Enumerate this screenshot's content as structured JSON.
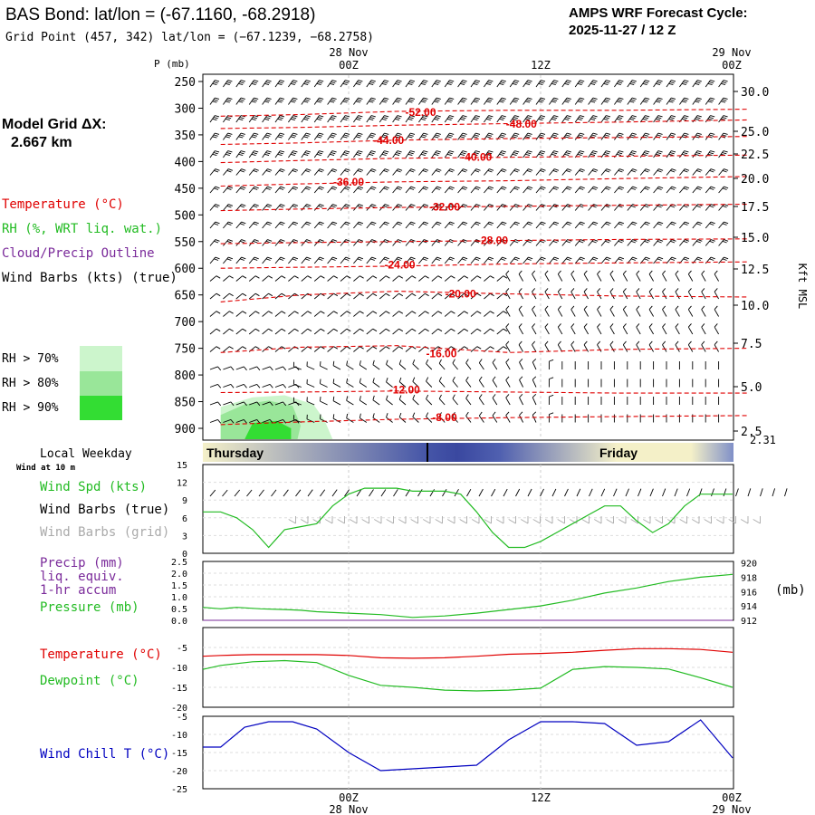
{
  "header": {
    "title": "BAS Bond:  lat/lon = (-67.1160, -68.2918)",
    "grid_point": "Grid Point (457, 342) lat/lon = (−67.1239, −68.2758)",
    "forecast_label": "AMPS WRF Forecast Cycle:",
    "forecast_cycle": "2025-11-27 / 12  Z"
  },
  "time_axis": {
    "top_date_left": "28 Nov",
    "top_date_right": "29 Nov",
    "ticks": [
      "00Z",
      "12Z",
      "00Z"
    ],
    "bottom_date_left": "28 Nov",
    "bottom_date_right": "29 Nov"
  },
  "model": {
    "grid_label": "Model Grid ΔX:",
    "grid_value": "2.667 km"
  },
  "colors": {
    "temperature": "#e00000",
    "rh": "#22bb22",
    "cloud": "#7a2a9a",
    "wind": "#000000",
    "wind_grid": "#aaaaaa",
    "pressure_line": "#22bb22",
    "wind_chill": "#0000c0",
    "day_band_light": "#f4f0c8",
    "day_band_dark": "#4050a8",
    "rh70": "#ccf5cc",
    "rh80": "#99e699",
    "rh90": "#33dd33"
  },
  "legend": {
    "temperature": "Temperature (°C)",
    "rh": "RH (%, WRT liq. wat.)",
    "cloud": "Cloud/Precip Outline",
    "wind": "Wind Barbs (kts) (true)",
    "rh70": "RH > 70%",
    "rh80": "RH > 80%",
    "rh90": "RH > 90%"
  },
  "bottom_labels": {
    "local_weekday": "Local Weekday",
    "wind_at": "Wind at 10 m",
    "wind_spd": "Wind Spd (kts)",
    "wind_barbs_true": "Wind Barbs (true)",
    "wind_barbs_grid": "Wind Barbs (grid)",
    "precip_1": "Precip (mm)",
    "precip_2": "liq. equiv.",
    "precip_3": "1-hr accum",
    "pressure": "Pressure (mb)",
    "pressure_unit": "(mb)",
    "temperature": "Temperature (°C)",
    "dewpoint": "Dewpoint (°C)",
    "wind_chill": "Wind Chill T (°C)",
    "day_thursday": "Thursday",
    "day_friday": "Friday"
  },
  "chart_data": [
    {
      "type": "contour",
      "name": "upper_air",
      "ylabel": "P (mb)",
      "right_ylabel": "Kft MSL",
      "pressure_ticks": [
        250,
        300,
        350,
        400,
        450,
        500,
        550,
        600,
        650,
        700,
        750,
        800,
        850,
        900
      ],
      "kft_ticks": [
        "30.0",
        "25.0",
        "22.5",
        "20.0",
        "17.5",
        "15.0",
        "12.5",
        "10.0",
        "7.5",
        "5.0",
        "2.5"
      ],
      "surface_kft": "2.31",
      "ylim": [
        925,
        240
      ],
      "x_range_hours": [
        -8,
        25
      ],
      "temperature_contours": [
        {
          "label": "-52.00",
          "p": 308,
          "pts": [
            [
              -8,
              315
            ],
            [
              -3,
              312
            ],
            [
              3,
              306
            ],
            [
              10,
              304
            ],
            [
              17,
              304
            ],
            [
              25,
              302
            ]
          ],
          "lx": 4.5
        },
        {
          "label": "-48.00",
          "p": 330,
          "pts": [
            [
              -8,
              338
            ],
            [
              -3,
              336
            ],
            [
              3,
              332
            ],
            [
              10,
              329
            ],
            [
              17,
              326
            ],
            [
              25,
              322
            ]
          ],
          "lx": 10.8
        },
        {
          "label": "-44.00",
          "p": 360,
          "pts": [
            [
              -8,
              368
            ],
            [
              -3,
              365
            ],
            [
              3,
              360
            ],
            [
              10,
              357
            ],
            [
              17,
              355
            ],
            [
              25,
              353
            ]
          ],
          "lx": 2.5
        },
        {
          "label": "-40.00",
          "p": 392,
          "pts": [
            [
              -8,
              402
            ],
            [
              -3,
              398
            ],
            [
              3,
              394
            ],
            [
              10,
              392
            ],
            [
              17,
              390
            ],
            [
              25,
              388
            ]
          ],
          "lx": 8.0
        },
        {
          "label": "-36.00",
          "p": 438,
          "pts": [
            [
              -8,
              446
            ],
            [
              -3,
              442
            ],
            [
              3,
              438
            ],
            [
              10,
              436
            ],
            [
              17,
              432
            ],
            [
              25,
              428
            ]
          ],
          "lx": 0.0
        },
        {
          "label": "-32.00",
          "p": 485,
          "pts": [
            [
              -8,
              492
            ],
            [
              -3,
              489
            ],
            [
              3,
              486
            ],
            [
              10,
              484
            ],
            [
              17,
              482
            ],
            [
              25,
              480
            ]
          ],
          "lx": 6.0
        },
        {
          "label": "-28.00",
          "p": 548,
          "pts": [
            [
              -8,
              554
            ],
            [
              -3,
              552
            ],
            [
              3,
              550
            ],
            [
              10,
              548
            ],
            [
              17,
              546
            ],
            [
              25,
              545
            ]
          ],
          "lx": 9.0
        },
        {
          "label": "-24.00",
          "p": 594,
          "pts": [
            [
              -8,
              600
            ],
            [
              -3,
              598
            ],
            [
              3,
              596
            ],
            [
              10,
              592
            ],
            [
              17,
              590
            ],
            [
              25,
              588
            ]
          ],
          "lx": 3.2
        },
        {
          "label": "-20.00",
          "p": 648,
          "pts": [
            [
              -8,
              663
            ],
            [
              -3,
              650
            ],
            [
              3,
              643
            ],
            [
              10,
              648
            ],
            [
              17,
              652
            ],
            [
              25,
              654
            ]
          ],
          "lx": 7.0
        },
        {
          "label": "-16.00",
          "p": 760,
          "pts": [
            [
              -8,
              758
            ],
            [
              -3,
              748
            ],
            [
              3,
              745
            ],
            [
              10,
              758
            ],
            [
              17,
              752
            ],
            [
              25,
              750
            ]
          ],
          "lx": 5.8
        },
        {
          "label": "-12.00",
          "p": 828,
          "pts": [
            [
              -8,
              833
            ],
            [
              -3,
              832
            ],
            [
              3,
              830
            ],
            [
              10,
              832
            ],
            [
              17,
              834
            ],
            [
              25,
              834
            ]
          ],
          "lx": 3.5
        },
        {
          "label": "-8.00",
          "p": 880,
          "pts": [
            [
              -8,
              893
            ],
            [
              -3,
              888
            ],
            [
              3,
              883
            ],
            [
              10,
              880
            ],
            [
              17,
              878
            ],
            [
              25,
              876
            ]
          ],
          "lx": 6.0
        }
      ],
      "rh_regions": [
        {
          "level": 70,
          "pts": [
            [
              -8,
              925
            ],
            [
              -8,
              860
            ],
            [
              -6,
              842
            ],
            [
              -4,
              838
            ],
            [
              -2.2,
              855
            ],
            [
              -1.5,
              885
            ],
            [
              -1,
              925
            ]
          ]
        },
        {
          "level": 80,
          "pts": [
            [
              -8,
              925
            ],
            [
              -8,
              875
            ],
            [
              -6.5,
              855
            ],
            [
              -5,
              848
            ],
            [
              -3.5,
              858
            ],
            [
              -3,
              895
            ],
            [
              -3.2,
              925
            ]
          ]
        },
        {
          "level": 90,
          "pts": [
            [
              -6.5,
              925
            ],
            [
              -6,
              890
            ],
            [
              -4.5,
              886
            ],
            [
              -3.6,
              900
            ],
            [
              -3.6,
              925
            ]
          ]
        }
      ]
    },
    {
      "type": "line",
      "name": "wind_speed",
      "ylabel": "Wind Spd (kts)",
      "yticks": [
        0,
        3,
        6,
        9,
        12,
        15
      ],
      "ylim": [
        0,
        15
      ],
      "x": [
        -9.5,
        -8,
        -7,
        -6,
        -5,
        -4.5,
        -4,
        -3,
        -2,
        -1,
        0,
        1,
        2,
        3,
        4,
        5,
        6,
        7,
        8,
        9,
        10,
        11,
        12,
        13,
        14,
        15,
        16,
        17,
        18,
        19,
        20,
        21,
        22,
        23,
        24
      ],
      "values": [
        7,
        7,
        6,
        4,
        1,
        2.5,
        4,
        4.5,
        5,
        8,
        10,
        11,
        11,
        11,
        10.5,
        10.5,
        10.5,
        10,
        7,
        3.5,
        1,
        1,
        2,
        3.5,
        5,
        6.5,
        8,
        8,
        5.5,
        3.5,
        5,
        8,
        10,
        10,
        10
      ]
    },
    {
      "type": "line",
      "name": "precip_pressure",
      "ylabel_left": "Precip (mm)",
      "ylabel_right": "Pressure (mb)",
      "yticks_left": [
        "0.0",
        "0.5",
        "1.0",
        "1.5",
        "2.0",
        "2.5"
      ],
      "ylim_left": [
        0,
        2.5
      ],
      "yticks_right": [
        912,
        914,
        916,
        918,
        920
      ],
      "ylim_right": [
        912,
        920.2
      ],
      "x": [
        -9.5,
        -8,
        -7,
        -5.5,
        -4,
        -3,
        -2,
        0,
        2,
        4,
        6,
        8,
        10,
        12,
        14,
        16,
        18,
        20,
        22,
        24
      ],
      "pressure": [
        913.8,
        913.6,
        913.8,
        913.6,
        913.5,
        913.4,
        913.2,
        913,
        912.8,
        912.4,
        912.6,
        913,
        913.5,
        914,
        914.8,
        915.8,
        916.5,
        917.4,
        918,
        918.4
      ],
      "precip": [
        0,
        0,
        0,
        0,
        0,
        0,
        0,
        0,
        0,
        0,
        0,
        0,
        0,
        0,
        0,
        0,
        0,
        0,
        0,
        0
      ]
    },
    {
      "type": "line",
      "name": "temperature_dewpoint",
      "yticks": [
        -20,
        -15,
        -10,
        -5
      ],
      "ylim": [
        -20,
        0
      ],
      "x": [
        -9.5,
        -8,
        -6,
        -4,
        -2,
        0,
        2,
        4,
        6,
        8,
        10,
        12,
        14,
        16,
        18,
        20,
        22,
        24
      ],
      "series": [
        {
          "name": "Temperature",
          "values": [
            -7.2,
            -7.0,
            -6.8,
            -6.8,
            -6.8,
            -7,
            -7.6,
            -7.7,
            -7.6,
            -7.2,
            -6.7,
            -6.5,
            -6.2,
            -5.7,
            -5.3,
            -5.3,
            -5.5,
            -6.2
          ]
        },
        {
          "name": "Dewpoint",
          "values": [
            -10.5,
            -9.5,
            -8.6,
            -8.3,
            -8.8,
            -12,
            -14.5,
            -15,
            -15.7,
            -15.9,
            -15.7,
            -15.2,
            -10.5,
            -9.8,
            -10,
            -10.4,
            -12.6,
            -15
          ]
        }
      ]
    },
    {
      "type": "line",
      "name": "wind_chill",
      "ylabel": "Wind Chill T (°C)",
      "yticks": [
        -25,
        -20,
        -15,
        -10,
        -5
      ],
      "ylim": [
        -25,
        -5
      ],
      "x": [
        -9.5,
        -8,
        -6.5,
        -5,
        -3.5,
        -2,
        0,
        2,
        4,
        6,
        8,
        10,
        12,
        14,
        16,
        18,
        20,
        22,
        24
      ],
      "values": [
        -13.5,
        -13.5,
        -8,
        -6.5,
        -6.5,
        -8.5,
        -15,
        -20,
        -19.5,
        -19,
        -18.5,
        -11.5,
        -6.5,
        -6.5,
        -7,
        -13,
        -12,
        -6,
        -16.5
      ]
    }
  ]
}
